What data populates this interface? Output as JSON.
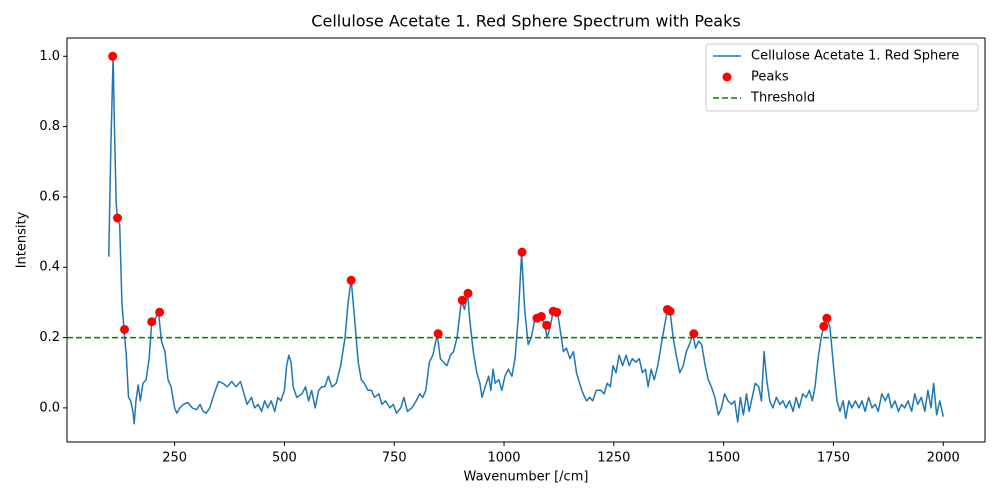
{
  "chart_data": {
    "type": "line",
    "title": "Cellulose Acetate 1. Red Sphere Spectrum with Peaks",
    "x_label": "Wavenumber [/cm]",
    "y_label": "Intensity",
    "xlim": [
      5,
      2095
    ],
    "ylim": [
      -0.097,
      1.052
    ],
    "xticks": [
      250,
      500,
      750,
      1000,
      1250,
      1500,
      1750,
      2000
    ],
    "yticks": [
      {
        "value": 0,
        "label": "0.0"
      },
      {
        "value": 0.2,
        "label": "0.2"
      },
      {
        "value": 0.4,
        "label": "0.4"
      },
      {
        "value": 0.6,
        "label": "0.6"
      },
      {
        "value": 0.8,
        "label": "0.8"
      },
      {
        "value": 1,
        "label": "1.0"
      }
    ],
    "legend": "upper right",
    "series": [
      {
        "name": "Cellulose Acetate 1. Red Sphere",
        "color": "#1f77b4",
        "style": "line",
        "x": [
          100,
          105,
          110,
          113,
          117,
          120,
          125,
          130,
          135,
          140,
          145,
          150,
          155,
          158,
          162,
          167,
          172,
          178,
          185,
          192,
          198,
          205,
          213,
          220,
          228,
          235,
          242,
          250,
          255,
          262,
          270,
          280,
          290,
          300,
          308,
          315,
          322,
          330,
          340,
          350,
          360,
          370,
          380,
          390,
          400,
          408,
          415,
          425,
          432,
          440,
          448,
          455,
          462,
          470,
          478,
          485,
          492,
          500,
          505,
          510,
          515,
          520,
          528,
          540,
          548,
          555,
          562,
          570,
          578,
          585,
          592,
          600,
          608,
          618,
          628,
          638,
          645,
          652,
          660,
          668,
          675,
          682,
          690,
          698,
          705,
          715,
          722,
          730,
          740,
          748,
          755,
          765,
          772,
          780,
          790,
          800,
          808,
          815,
          822,
          830,
          838,
          848,
          855,
          862,
          870,
          878,
          885,
          893,
          903,
          910,
          917,
          922,
          930,
          938,
          945,
          950,
          957,
          965,
          970,
          975,
          980,
          988,
          995,
          1002,
          1010,
          1018,
          1025,
          1032,
          1040,
          1047,
          1055,
          1062,
          1070,
          1077,
          1085,
          1093,
          1098,
          1105,
          1112,
          1118,
          1122,
          1128,
          1135,
          1142,
          1150,
          1158,
          1165,
          1172,
          1180,
          1188,
          1195,
          1202,
          1210,
          1220,
          1228,
          1235,
          1242,
          1248,
          1255,
          1262,
          1270,
          1278,
          1285,
          1292,
          1300,
          1308,
          1315,
          1322,
          1328,
          1335,
          1342,
          1350,
          1358,
          1365,
          1372,
          1378,
          1385,
          1392,
          1400,
          1408,
          1415,
          1422,
          1430,
          1436,
          1443,
          1450,
          1458,
          1465,
          1472,
          1480,
          1488,
          1495,
          1502,
          1510,
          1518,
          1525,
          1532,
          1538,
          1545,
          1552,
          1558,
          1565,
          1572,
          1580,
          1586,
          1592,
          1598,
          1605,
          1612,
          1620,
          1628,
          1635,
          1642,
          1650,
          1658,
          1665,
          1672,
          1680,
          1688,
          1695,
          1702,
          1708,
          1715,
          1722,
          1728,
          1735,
          1742,
          1750,
          1758,
          1765,
          1772,
          1778,
          1785,
          1792,
          1800,
          1808,
          1815,
          1822,
          1830,
          1838,
          1845,
          1852,
          1860,
          1868,
          1875,
          1882,
          1890,
          1898,
          1905,
          1912,
          1920,
          1928,
          1935,
          1942,
          1950,
          1958,
          1965,
          1972,
          1978,
          1985,
          1992,
          2000
        ],
        "values": [
          0.43,
          0.75,
          1.0,
          0.8,
          0.58,
          0.54,
          0.52,
          0.3,
          0.22,
          0.15,
          0.03,
          0.02,
          -0.01,
          -0.045,
          0.02,
          0.065,
          0.02,
          0.07,
          0.08,
          0.14,
          0.245,
          0.25,
          0.275,
          0.19,
          0.16,
          0.08,
          0.06,
          0.0,
          -0.015,
          0.0,
          0.01,
          0.015,
          0.0,
          -0.005,
          0.01,
          -0.01,
          -0.015,
          0.0,
          0.04,
          0.075,
          0.07,
          0.06,
          0.075,
          0.06,
          0.075,
          0.04,
          0.01,
          0.03,
          0.0,
          0.01,
          -0.01,
          0.02,
          0.0,
          0.02,
          -0.01,
          0.03,
          0.02,
          0.05,
          0.12,
          0.15,
          0.13,
          0.06,
          0.03,
          0.04,
          0.06,
          0.02,
          0.05,
          0.0,
          0.05,
          0.06,
          0.06,
          0.09,
          0.06,
          0.07,
          0.12,
          0.2,
          0.3,
          0.365,
          0.25,
          0.13,
          0.08,
          0.07,
          0.05,
          0.05,
          0.03,
          0.04,
          0.01,
          0.02,
          0.0,
          0.01,
          -0.015,
          0.0,
          0.03,
          -0.01,
          0.0,
          0.02,
          0.04,
          0.03,
          0.05,
          0.13,
          0.15,
          0.21,
          0.14,
          0.13,
          0.12,
          0.15,
          0.16,
          0.2,
          0.305,
          0.28,
          0.325,
          0.25,
          0.16,
          0.1,
          0.07,
          0.03,
          0.06,
          0.09,
          0.05,
          0.11,
          0.07,
          0.08,
          0.05,
          0.09,
          0.11,
          0.09,
          0.14,
          0.25,
          0.44,
          0.28,
          0.18,
          0.2,
          0.25,
          0.255,
          0.26,
          0.235,
          0.2,
          0.23,
          0.275,
          0.26,
          0.27,
          0.22,
          0.16,
          0.17,
          0.14,
          0.16,
          0.1,
          0.07,
          0.04,
          0.02,
          0.03,
          0.02,
          0.05,
          0.05,
          0.04,
          0.07,
          0.06,
          0.12,
          0.1,
          0.15,
          0.12,
          0.15,
          0.12,
          0.14,
          0.13,
          0.14,
          0.1,
          0.11,
          0.06,
          0.11,
          0.08,
          0.12,
          0.18,
          0.23,
          0.28,
          0.275,
          0.2,
          0.15,
          0.1,
          0.12,
          0.16,
          0.18,
          0.21,
          0.17,
          0.19,
          0.18,
          0.12,
          0.08,
          0.06,
          0.03,
          -0.02,
          0.0,
          0.04,
          0.02,
          0.01,
          0.02,
          -0.04,
          0.03,
          -0.02,
          0.04,
          -0.01,
          0.03,
          0.07,
          0.06,
          0.02,
          0.16,
          0.08,
          0.02,
          0.0,
          0.03,
          0.01,
          0.02,
          0.0,
          0.02,
          -0.01,
          0.03,
          0.0,
          0.04,
          0.03,
          0.05,
          0.02,
          0.06,
          0.14,
          0.2,
          0.23,
          0.255,
          0.23,
          0.12,
          0.02,
          -0.01,
          0.02,
          -0.03,
          0.02,
          0.0,
          0.02,
          0.0,
          0.02,
          -0.01,
          0.03,
          0.0,
          0.01,
          -0.01,
          0.04,
          0.02,
          0.04,
          0.0,
          0.02,
          -0.01,
          0.01,
          0.0,
          0.02,
          -0.01,
          0.04,
          0.01,
          0.03,
          -0.01,
          0.05,
          0.0,
          0.07,
          -0.02,
          0.02,
          -0.025
        ]
      },
      {
        "name": "Peaks",
        "color": "#ff0000",
        "style": "scatter",
        "x": [
          109,
          120,
          136,
          198,
          216,
          652,
          850,
          905,
          918,
          1041,
          1075,
          1085,
          1097,
          1112,
          1120,
          1372,
          1378,
          1432,
          1728,
          1735
        ],
        "values": [
          1.0,
          0.54,
          0.223,
          0.245,
          0.272,
          0.363,
          0.211,
          0.306,
          0.326,
          0.443,
          0.255,
          0.26,
          0.235,
          0.275,
          0.272,
          0.28,
          0.275,
          0.211,
          0.232,
          0.255
        ]
      }
    ],
    "threshold": {
      "name": "Threshold",
      "value": 0.2,
      "color": "#008000"
    }
  }
}
